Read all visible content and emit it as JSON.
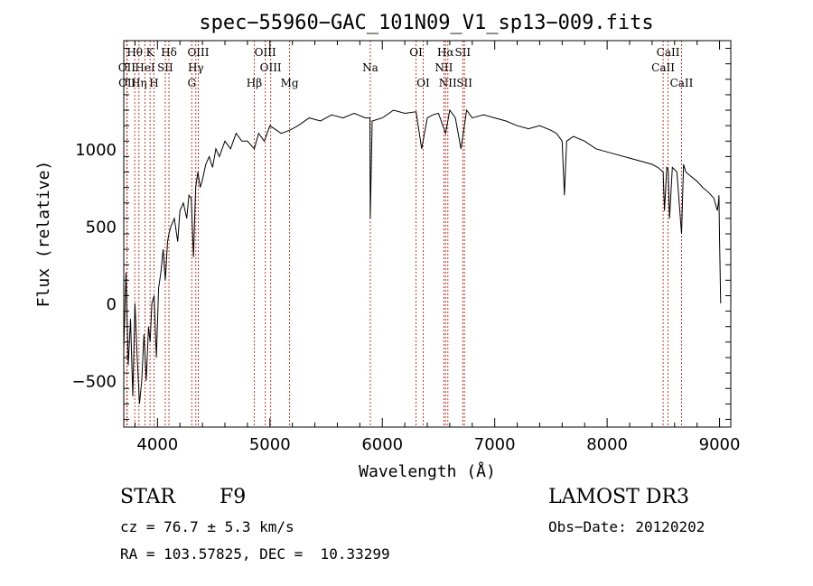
{
  "chart_data": {
    "type": "line",
    "title": "spec−55960−GAC_101N09_V1_sp13−009.fits",
    "xlabel": "Wavelength (Å)",
    "ylabel": "Flux (relative)",
    "xlim": [
      3700,
      9100
    ],
    "ylim": [
      -800,
      1700
    ],
    "xticks": [
      4000,
      5000,
      6000,
      7000,
      8000,
      9000
    ],
    "xtick_labels": [
      "4000",
      "5000",
      "6000",
      "7000",
      "8000",
      "9000"
    ],
    "yticks": [
      -500,
      0,
      500,
      1000
    ],
    "ytick_labels": [
      "−500",
      "0",
      "500",
      "1000"
    ],
    "series": [
      {
        "name": "flux",
        "x": [
          3700,
          3720,
          3740,
          3760,
          3780,
          3800,
          3820,
          3840,
          3860,
          3880,
          3900,
          3920,
          3935,
          3950,
          3970,
          3990,
          4010,
          4030,
          4050,
          4070,
          4090,
          4102,
          4120,
          4150,
          4180,
          4200,
          4230,
          4260,
          4280,
          4300,
          4320,
          4340,
          4360,
          4380,
          4400,
          4430,
          4460,
          4490,
          4520,
          4550,
          4600,
          4650,
          4700,
          4750,
          4800,
          4861,
          4900,
          4950,
          5000,
          5100,
          5175,
          5250,
          5350,
          5450,
          5550,
          5650,
          5750,
          5850,
          5890,
          5893,
          5910,
          6000,
          6100,
          6200,
          6300,
          6350,
          6400,
          6450,
          6500,
          6563,
          6600,
          6650,
          6700,
          6750,
          6800,
          6900,
          7000,
          7100,
          7200,
          7300,
          7400,
          7500,
          7550,
          7600,
          7620,
          7640,
          7700,
          7800,
          7900,
          8000,
          8100,
          8200,
          8300,
          8400,
          8450,
          8498,
          8510,
          8530,
          8542,
          8555,
          8580,
          8620,
          8662,
          8680,
          8700,
          8750,
          8800,
          8850,
          8900,
          8950,
          8980,
          8990,
          8995,
          9000,
          9010
        ],
        "values": [
          -300,
          200,
          -400,
          -100,
          -600,
          0,
          -350,
          -650,
          -500,
          -200,
          -500,
          -150,
          -250,
          0,
          50,
          -350,
          100,
          200,
          350,
          150,
          400,
          450,
          500,
          550,
          400,
          600,
          650,
          550,
          700,
          680,
          300,
          750,
          850,
          750,
          800,
          900,
          950,
          880,
          1000,
          950,
          1050,
          1000,
          1100,
          1050,
          1050,
          1000,
          1100,
          1050,
          1150,
          1100,
          1120,
          1150,
          1200,
          1180,
          1220,
          1200,
          1230,
          1200,
          1200,
          550,
          1180,
          1200,
          1250,
          1230,
          1240,
          1000,
          1200,
          1220,
          1230,
          1100,
          1250,
          1200,
          1000,
          1250,
          1200,
          1220,
          1200,
          1180,
          1150,
          1130,
          1150,
          1120,
          1100,
          1050,
          700,
          1050,
          1080,
          1050,
          1000,
          980,
          960,
          940,
          920,
          900,
          880,
          850,
          600,
          880,
          870,
          550,
          880,
          850,
          450,
          900,
          850,
          820,
          790,
          750,
          720,
          680,
          600,
          650,
          700,
          400,
          0
        ]
      }
    ],
    "line_marks": [
      {
        "label": "Hθ",
        "x": 3798,
        "row": 1
      },
      {
        "label": "OII",
        "x": 3727,
        "row": 2
      },
      {
        "label": "OII",
        "x": 3730,
        "row": 3
      },
      {
        "label": "Hη",
        "x": 3835,
        "row": 3
      },
      {
        "label": "K",
        "x": 3934,
        "row": 1
      },
      {
        "label": "HeI",
        "x": 3889,
        "row": 2
      },
      {
        "label": "H",
        "x": 3969,
        "row": 3
      },
      {
        "label": "SII",
        "x": 4069,
        "row": 2
      },
      {
        "label": "Hδ",
        "x": 4102,
        "row": 1
      },
      {
        "label": "OIII",
        "x": 4363,
        "row": 1
      },
      {
        "label": "Hγ",
        "x": 4341,
        "row": 2
      },
      {
        "label": "G",
        "x": 4305,
        "row": 3
      },
      {
        "label": "OIII",
        "x": 4959,
        "row": 1
      },
      {
        "label": "OIII",
        "x": 5007,
        "row": 2
      },
      {
        "label": "Hβ",
        "x": 4861,
        "row": 3
      },
      {
        "label": "Mg",
        "x": 5175,
        "row": 3
      },
      {
        "label": "Na",
        "x": 5893,
        "row": 2
      },
      {
        "label": "OI",
        "x": 6300,
        "row": 1
      },
      {
        "label": "OI",
        "x": 6364,
        "row": 3
      },
      {
        "label": "Hα",
        "x": 6563,
        "row": 1
      },
      {
        "label": "NII",
        "x": 6548,
        "row": 2
      },
      {
        "label": "NII",
        "x": 6583,
        "row": 3
      },
      {
        "label": "SII",
        "x": 6716,
        "row": 1
      },
      {
        "label": "SII",
        "x": 6731,
        "row": 3
      },
      {
        "label": "CaII",
        "x": 8542,
        "row": 1
      },
      {
        "label": "CaII",
        "x": 8498,
        "row": 2
      },
      {
        "label": "CaII",
        "x": 8662,
        "row": 3
      }
    ]
  },
  "info": {
    "object_class": "STAR",
    "subclass": "F9",
    "survey": "LAMOST DR3",
    "redshift_text": "cz = 76.7 ± 5.3 km/s",
    "obs_date_text": "Obs−Date: 20120202",
    "coords_text": "RA = 103.57825, DEC =  10.33299"
  },
  "colors": {
    "spectrum": "#000000",
    "line_marker": "#c0392b",
    "axes": "#000000"
  }
}
